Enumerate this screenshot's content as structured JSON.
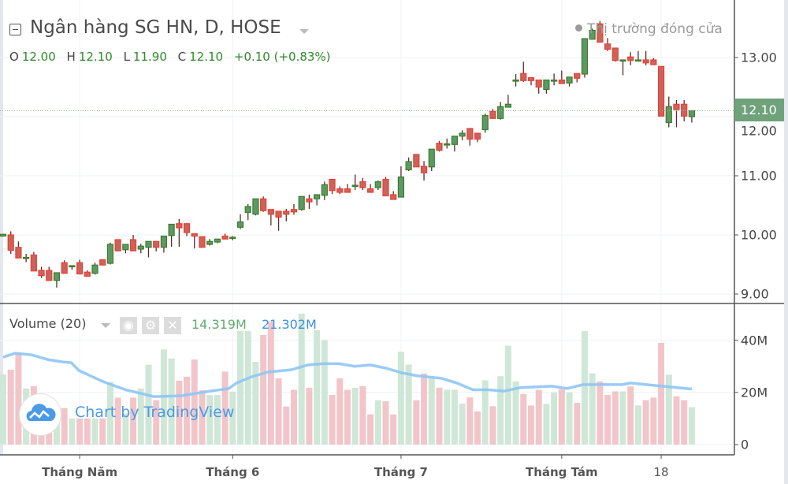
{
  "header": {
    "title": "Ngân hàng SG HN, D, HOSE",
    "ohlc": {
      "o_label": "O",
      "o": "12.00",
      "h_label": "H",
      "h": "12.10",
      "l_label": "L",
      "l": "11.90",
      "c_label": "C",
      "c": "12.10",
      "change": "+0.10 (+0.83%)"
    },
    "market_status": "Thị trường đóng cửa"
  },
  "volume_legend": {
    "label": "Volume (20)",
    "volume_value": "14.319M",
    "ma_value": "21.302M",
    "icons": [
      "eye-icon",
      "gear-icon",
      "close-icon"
    ]
  },
  "watermark": "Chart by TradingView",
  "last_price_label": "12.10",
  "colors": {
    "up": "#5f9866",
    "up_border": "#3a7d2c",
    "down": "#c8645c",
    "down_border": "#ee3d33",
    "wick": "#5b2b2b",
    "vol_up": "#cfe7d6",
    "vol_down": "#f1c5c9",
    "ma": "#8ec5f4",
    "value_green": "#2f8a2b",
    "ma_blue": "#3d8fe6"
  },
  "chart_data": {
    "type": "candlestick",
    "price_axis": {
      "ticks": [
        "13.00",
        "12.00",
        "11.00",
        "10.00",
        "9.00"
      ],
      "tick_values": [
        13,
        12,
        11,
        10,
        9
      ],
      "range": [
        8.85,
        13.65
      ]
    },
    "volume_axis": {
      "ticks": [
        "40M",
        "20M",
        "0"
      ],
      "tick_values": [
        40,
        20,
        0
      ],
      "unit": "M"
    },
    "x_axis": {
      "labels": [
        {
          "text": "Tháng Năm",
          "index": 10,
          "bold": true
        },
        {
          "text": "Tháng 6",
          "index": 30,
          "bold": true
        },
        {
          "text": "Tháng 7",
          "index": 52,
          "bold": true
        },
        {
          "text": "Tháng Tám",
          "index": 73,
          "bold": true
        },
        {
          "text": "18",
          "index": 86,
          "bold": false
        }
      ]
    },
    "ohlc": [
      [
        9.98,
        10.02,
        9.97,
        10.01
      ],
      [
        10.0,
        10.06,
        9.68,
        9.74
      ],
      [
        9.79,
        9.89,
        9.61,
        9.61
      ],
      [
        9.62,
        9.68,
        9.54,
        9.62
      ],
      [
        9.66,
        9.71,
        9.39,
        9.39
      ],
      [
        9.4,
        9.46,
        9.27,
        9.31
      ],
      [
        9.4,
        9.46,
        9.23,
        9.23
      ],
      [
        9.23,
        9.36,
        9.11,
        9.36
      ],
      [
        9.53,
        9.57,
        9.35,
        9.35
      ],
      [
        9.48,
        9.48,
        9.41,
        9.48
      ],
      [
        9.53,
        9.58,
        9.34,
        9.34
      ],
      [
        9.37,
        9.4,
        9.3,
        9.3
      ],
      [
        9.35,
        9.53,
        9.33,
        9.49
      ],
      [
        9.58,
        9.58,
        9.49,
        9.49
      ],
      [
        9.52,
        9.87,
        9.5,
        9.84
      ],
      [
        9.92,
        9.92,
        9.73,
        9.73
      ],
      [
        9.75,
        9.84,
        9.69,
        9.84
      ],
      [
        9.92,
        10.0,
        9.73,
        9.73
      ],
      [
        9.76,
        9.85,
        9.69,
        9.81
      ],
      [
        9.79,
        9.89,
        9.62,
        9.89
      ],
      [
        9.89,
        9.89,
        9.72,
        9.79
      ],
      [
        9.79,
        9.98,
        9.7,
        9.98
      ],
      [
        9.99,
        10.18,
        9.8,
        10.18
      ],
      [
        10.19,
        10.27,
        9.8,
        10.12
      ],
      [
        10.19,
        10.19,
        9.98,
        10.04
      ],
      [
        10.02,
        10.02,
        9.77,
        9.98
      ],
      [
        9.97,
        9.97,
        9.79,
        9.79
      ],
      [
        9.84,
        9.93,
        9.82,
        9.89
      ],
      [
        9.88,
        9.93,
        9.86,
        9.93
      ],
      [
        9.98,
        10.02,
        9.93,
        9.93
      ],
      [
        9.96,
        9.98,
        9.91,
        9.96
      ],
      [
        10.13,
        10.35,
        10.1,
        10.22
      ],
      [
        10.38,
        10.52,
        10.25,
        10.48
      ],
      [
        10.35,
        10.61,
        10.33,
        10.61
      ],
      [
        10.61,
        10.65,
        10.39,
        10.41
      ],
      [
        10.43,
        10.43,
        10.16,
        10.35
      ],
      [
        10.4,
        10.4,
        10.07,
        10.3
      ],
      [
        10.4,
        10.44,
        10.23,
        10.35
      ],
      [
        10.43,
        10.52,
        10.34,
        10.39
      ],
      [
        10.43,
        10.65,
        10.41,
        10.65
      ],
      [
        10.61,
        10.68,
        10.44,
        10.56
      ],
      [
        10.61,
        10.68,
        10.5,
        10.68
      ],
      [
        10.67,
        10.9,
        10.59,
        10.85
      ],
      [
        10.94,
        10.94,
        10.69,
        10.75
      ],
      [
        10.78,
        10.82,
        10.69,
        10.72
      ],
      [
        10.78,
        10.86,
        10.72,
        10.72
      ],
      [
        10.84,
        11.02,
        10.76,
        10.84
      ],
      [
        10.9,
        10.96,
        10.76,
        10.8
      ],
      [
        10.78,
        10.86,
        10.72,
        10.72
      ],
      [
        10.8,
        10.92,
        10.76,
        10.9
      ],
      [
        10.94,
        10.98,
        10.66,
        10.66
      ],
      [
        10.68,
        10.74,
        10.6,
        10.6
      ],
      [
        10.64,
        11.16,
        10.64,
        10.98
      ],
      [
        11.1,
        11.31,
        11.08,
        11.24
      ],
      [
        11.36,
        11.36,
        11.15,
        11.15
      ],
      [
        11.16,
        11.25,
        10.92,
        11.05
      ],
      [
        11.15,
        11.45,
        11.08,
        11.45
      ],
      [
        11.55,
        11.59,
        11.41,
        11.43
      ],
      [
        11.54,
        11.63,
        11.46,
        11.54
      ],
      [
        11.53,
        11.67,
        11.41,
        11.67
      ],
      [
        11.67,
        11.77,
        11.6,
        11.72
      ],
      [
        11.8,
        11.8,
        11.51,
        11.62
      ],
      [
        11.72,
        11.72,
        11.57,
        11.62
      ],
      [
        11.78,
        12.05,
        11.73,
        12.02
      ],
      [
        12.09,
        12.13,
        11.97,
        11.97
      ],
      [
        11.97,
        12.25,
        11.95,
        12.17
      ],
      [
        12.16,
        12.37,
        12.16,
        12.21
      ],
      [
        12.62,
        12.72,
        12.51,
        12.62
      ],
      [
        12.73,
        12.93,
        12.59,
        12.61
      ],
      [
        12.66,
        12.66,
        12.53,
        12.61
      ],
      [
        12.62,
        12.62,
        12.39,
        12.5
      ],
      [
        12.46,
        12.62,
        12.39,
        12.62
      ],
      [
        12.62,
        12.73,
        12.53,
        12.62
      ],
      [
        12.62,
        12.78,
        12.56,
        12.56
      ],
      [
        12.57,
        12.67,
        12.51,
        12.67
      ],
      [
        12.73,
        12.73,
        12.58,
        12.65
      ],
      [
        12.72,
        13.32,
        12.66,
        13.32
      ],
      [
        13.31,
        13.49,
        13.31,
        13.46
      ],
      [
        13.57,
        13.62,
        13.26,
        13.26
      ],
      [
        13.23,
        13.33,
        13.11,
        13.14
      ],
      [
        13.16,
        13.16,
        12.93,
        12.95
      ],
      [
        12.96,
        12.96,
        12.7,
        12.96
      ],
      [
        13.01,
        13.09,
        12.87,
        12.95
      ],
      [
        12.96,
        13.11,
        12.96,
        12.96
      ],
      [
        12.96,
        13.11,
        12.87,
        12.91
      ],
      [
        12.96,
        12.99,
        12.88,
        12.88
      ],
      [
        12.85,
        12.85,
        12.01,
        12.01
      ],
      [
        11.9,
        12.34,
        11.82,
        12.17
      ],
      [
        12.21,
        12.28,
        11.82,
        12.12
      ],
      [
        12.21,
        12.28,
        11.92,
        12.01
      ],
      [
        12.0,
        12.1,
        11.9,
        12.1
      ]
    ],
    "volume_millions": [
      26.9,
      28.7,
      35,
      21.5,
      22.4,
      16,
      13,
      12,
      14,
      10,
      10,
      10,
      10,
      10,
      24,
      18,
      12,
      18,
      21.5,
      30.6,
      17,
      36.5,
      33,
      24.5,
      26,
      32.6,
      20.8,
      19,
      19,
      28,
      20.3,
      43.5,
      43.5,
      31.7,
      42,
      47.2,
      25.4,
      14.6,
      21,
      50.2,
      21.8,
      43.8,
      40,
      19,
      25.4,
      21,
      21.8,
      22.4,
      11.6,
      17,
      16.6,
      11.6,
      35.6,
      30.7,
      17,
      27.2,
      25.4,
      21.8,
      21,
      21,
      15.7,
      18.1,
      12.7,
      24.6,
      14.7,
      26.2,
      37.9,
      24.2,
      19.4,
      15,
      21,
      15.6,
      20,
      21.2,
      20,
      16,
      43.5,
      27.3,
      24.2,
      19,
      20.4,
      20.4,
      22.3,
      15,
      17,
      18,
      39,
      26.8,
      18.5,
      17,
      14.319
    ],
    "volume_ma20": [
      [
        0,
        33.5
      ],
      [
        1.6,
        35
      ],
      [
        3.7,
        34.4
      ],
      [
        5.8,
        32.6
      ],
      [
        7.8,
        31.7
      ],
      [
        8.9,
        31.4
      ],
      [
        9.9,
        28.4
      ],
      [
        13,
        24.2
      ],
      [
        16,
        21
      ],
      [
        19.7,
        18.4
      ],
      [
        23.3,
        18.7
      ],
      [
        26.4,
        20.2
      ],
      [
        29.5,
        21.5
      ],
      [
        30.5,
        23.6
      ],
      [
        32.5,
        26
      ],
      [
        34.6,
        27.8
      ],
      [
        37.7,
        28.7
      ],
      [
        39.8,
        30.5
      ],
      [
        41.8,
        31
      ],
      [
        43.9,
        31
      ],
      [
        45.9,
        30
      ],
      [
        48,
        30.5
      ],
      [
        50,
        29.3
      ],
      [
        52.1,
        27.5
      ],
      [
        54.2,
        26.3
      ],
      [
        57.3,
        25.4
      ],
      [
        59.3,
        23.6
      ],
      [
        61.4,
        21
      ],
      [
        63.4,
        21
      ],
      [
        65.5,
        20.5
      ],
      [
        67.6,
        21.8
      ],
      [
        71.7,
        22.4
      ],
      [
        73.7,
        21.5
      ],
      [
        75.8,
        23
      ],
      [
        80.9,
        23
      ],
      [
        82,
        23.6
      ],
      [
        86.1,
        22.4
      ],
      [
        90,
        21.3
      ]
    ],
    "last_price": 12.1
  }
}
